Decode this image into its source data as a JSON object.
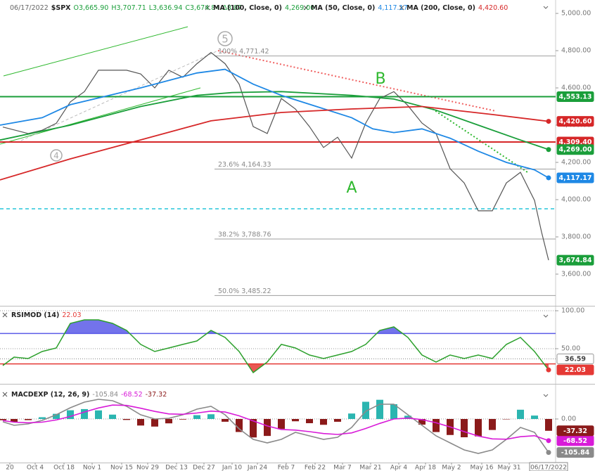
{
  "chart_data": [
    {
      "type": "line",
      "header": [
        "06/17/2022",
        "$SPX",
        "O3,665.90",
        "H3,707.71",
        "L3,636.94",
        "C3,674.84",
        "Δ8.07"
      ],
      "xlim": [
        0,
        39.5
      ],
      "xticks": [
        {
          "value": 0.7,
          "label": "20"
        },
        {
          "value": 2.5,
          "label": "Oct 4"
        },
        {
          "value": 4.55,
          "label": "Oct 18"
        },
        {
          "value": 6.55,
          "label": "Nov 1"
        },
        {
          "value": 8.65,
          "label": "Nov 15"
        },
        {
          "value": 10.5,
          "label": "Nov 29"
        },
        {
          "value": 12.55,
          "label": "Dec 13"
        },
        {
          "value": 14.5,
          "label": "Dec 27"
        },
        {
          "value": 16.5,
          "label": "Jan 10"
        },
        {
          "value": 18.3,
          "label": "Jan 24"
        },
        {
          "value": 20.35,
          "label": "Feb 7"
        },
        {
          "value": 22.4,
          "label": "Feb 22"
        },
        {
          "value": 24.35,
          "label": "Mar 7"
        },
        {
          "value": 26.35,
          "label": "Mar 21"
        },
        {
          "value": 28.35,
          "label": "Apr 4"
        },
        {
          "value": 30.25,
          "label": "Apr 18"
        },
        {
          "value": 32.1,
          "label": "May 2"
        },
        {
          "value": 34.25,
          "label": "May 16"
        },
        {
          "value": 36.2,
          "label": "May 31"
        },
        {
          "value": 39,
          "label": "06/17/2022"
        }
      ],
      "ylim": [
        3430,
        5072
      ],
      "yticks": [
        {
          "value": 5000,
          "label": "5,000.00"
        },
        {
          "value": 4800,
          "label": "4,800.00"
        },
        {
          "value": 4600,
          "label": "4,600.00"
        },
        {
          "value": 4400,
          "label": "4,400.00"
        },
        {
          "value": 4200,
          "label": "4,200.00"
        },
        {
          "value": 4000,
          "label": "4,000.00"
        },
        {
          "value": 3800,
          "label": "3,800.00"
        },
        {
          "value": 3600,
          "label": "3,600.00"
        }
      ],
      "series": [
        {
          "name": "$SPX",
          "color": "#555555",
          "tag_color": "#1a9e3a",
          "last_label": "3,674.84",
          "x": [
            0.2,
            2,
            3,
            4,
            5,
            6,
            7,
            8,
            9,
            10,
            11,
            12,
            13,
            14,
            15,
            16,
            17,
            18,
            19,
            20,
            21,
            22,
            23,
            24,
            25,
            26,
            27,
            28,
            29,
            30,
            31,
            32,
            33,
            34,
            35,
            36,
            37,
            38,
            38.5,
            39
          ],
          "values": [
            4390,
            4355,
            4373,
            4410,
            4525,
            4580,
            4695,
            4695,
            4695,
            4675,
            4600,
            4695,
            4657,
            4730,
            4790,
            4730,
            4620,
            4392,
            4355,
            4543,
            4487,
            4392,
            4280,
            4335,
            4223,
            4411,
            4543,
            4580,
            4505,
            4411,
            4355,
            4166,
            4090,
            3940,
            3940,
            4090,
            4147,
            3996,
            3826,
            3674.84
          ]
        },
        {
          "name": "MA (100, Close, 0)",
          "color": "#1a9e3a",
          "last_label": "4,269.00",
          "x": [
            0,
            5,
            10,
            14,
            16.5,
            20,
            25,
            28,
            31,
            34,
            37,
            39
          ],
          "values": [
            4320,
            4400,
            4500,
            4560,
            4575,
            4580,
            4560,
            4540,
            4480,
            4400,
            4320,
            4269
          ]
        },
        {
          "name": "MA (50, Close, 0)",
          "color": "#1e88e5",
          "last_label": "4,117.17",
          "x": [
            0,
            3,
            5,
            10,
            14,
            16,
            18,
            20,
            22.5,
            25,
            26.5,
            28,
            30,
            32,
            34,
            36,
            38,
            39
          ],
          "values": [
            4400,
            4440,
            4510,
            4600,
            4680,
            4700,
            4620,
            4560,
            4500,
            4440,
            4380,
            4360,
            4380,
            4330,
            4260,
            4200,
            4160,
            4117.17
          ]
        },
        {
          "name": "MA (200, Close, 0)",
          "color": "#d62728",
          "last_label": "4,420.60",
          "x": [
            0,
            5,
            10,
            15,
            20,
            25,
            30,
            35,
            39
          ],
          "values": [
            4106,
            4219,
            4321,
            4423,
            4468,
            4487,
            4500,
            4457,
            4420.6
          ]
        }
      ],
      "levels": [
        {
          "value": 4553.13,
          "label": "4,553.13",
          "color": "#1a9e3a"
        },
        {
          "value": 4309.4,
          "label": "4,309.40",
          "color": "#d62728"
        },
        {
          "value": 3951,
          "color": "#26c6da",
          "dashed": true
        }
      ],
      "fib_color": "#9e9e9e",
      "fib_levels": [
        {
          "value": 4771.42,
          "label": "100% 4,771.42"
        },
        {
          "value": 4164.33,
          "label": "23.6% 4,164.33"
        },
        {
          "value": 3788.76,
          "label": "38.2% 3,788.76"
        },
        {
          "value": 3485.22,
          "label": "50.0% 3,485.22"
        }
      ],
      "annotations": [
        "5",
        "4",
        "A",
        "B"
      ]
    },
    {
      "type": "line",
      "title": "RSIMOD (14)",
      "ylim": [
        4.6,
        106.5
      ],
      "yticks": [
        {
          "value": 100,
          "label": "100.00"
        },
        {
          "value": 50,
          "label": "50.00"
        }
      ],
      "overbought": 70,
      "overbought_color": "#5b5be8",
      "oversold": 30,
      "oversold_color": "#e53935",
      "marker": {
        "value": 36.59,
        "label": "36.59"
      },
      "x": [
        0.2,
        1,
        2,
        3,
        4,
        5,
        6,
        7,
        8,
        9,
        10,
        11,
        12,
        13,
        14,
        15,
        16,
        17,
        18,
        19,
        20,
        21,
        22,
        23,
        24,
        25,
        26,
        27,
        28,
        29,
        30,
        31,
        32,
        33,
        34,
        35,
        36,
        37,
        38,
        39
      ],
      "series": [
        {
          "color": "#2ca02c",
          "tag_color": "#e53935",
          "last_label": "22.03",
          "values": [
            27.8,
            38.9,
            37,
            46.3,
            50.9,
            83.3,
            88,
            88,
            83.3,
            74.1,
            55.6,
            46.3,
            50.9,
            55.6,
            60.2,
            74.1,
            64.8,
            46.3,
            18.5,
            32.4,
            55.6,
            50.9,
            41.7,
            37,
            41.7,
            46.3,
            55.6,
            74.1,
            78.7,
            64.8,
            41.7,
            32.4,
            41.7,
            37,
            41.7,
            37,
            55.6,
            64.8,
            46.3,
            22.03
          ]
        }
      ]
    },
    {
      "type": "macd",
      "title": "MACDEXP (12, 26, 9)",
      "ylim": [
        -137.8,
        106.7
      ],
      "yticks": [
        {
          "value": 0,
          "label": "0.00"
        }
      ],
      "x": [
        0.2,
        1,
        2,
        3,
        4,
        5,
        6,
        7,
        8,
        9,
        10,
        11,
        12,
        13,
        14,
        15,
        16,
        17,
        18,
        19,
        20,
        21,
        22,
        23,
        24,
        25,
        26,
        27,
        28,
        29,
        30,
        31,
        32,
        33,
        34,
        35,
        36,
        37,
        38,
        39
      ],
      "series": [
        {
          "kind": "line",
          "color": "#8a8a8a",
          "last_label": "-105.84",
          "values": [
            -8.9,
            -20,
            -15.6,
            -4.4,
            13.3,
            35.6,
            53.3,
            62.2,
            57.8,
            40,
            13.3,
            0,
            2.2,
            13.3,
            31.1,
            40,
            13.3,
            -31.1,
            -64.4,
            -75.6,
            -64.4,
            -42.2,
            -53.3,
            -64.4,
            -57.8,
            -26.7,
            24.4,
            46.7,
            46.7,
            13.3,
            -20,
            -53.3,
            -75.6,
            -97.8,
            -108.9,
            -97.8,
            -64.4,
            -26.7,
            -42.2,
            -105.84
          ]
        },
        {
          "kind": "line",
          "color": "#d81bd8",
          "last_label": "-68.52",
          "values": [
            -5,
            -10,
            -12,
            -10,
            -3,
            8,
            22,
            35,
            44,
            43,
            34,
            24,
            16,
            15,
            19,
            25,
            22,
            10,
            -6,
            -22,
            -33,
            -35,
            -40,
            -46,
            -49,
            -44,
            -30,
            -14,
            0,
            3,
            -2,
            -12,
            -25,
            -40,
            -54,
            -63,
            -64,
            -56,
            -53,
            -68.52
          ]
        },
        {
          "kind": "bar",
          "color": "#2bb5b0",
          "down_color": "#8b1a1a",
          "last_label": "-37.32",
          "values": [
            -3.9,
            -10,
            -3.6,
            5.6,
            16.3,
            27.6,
            31.3,
            27.2,
            13.8,
            -3,
            -20.7,
            -24,
            -13.8,
            -1.7,
            12.1,
            15,
            -8.7,
            -41.1,
            -58.4,
            -53.6,
            -31.4,
            -7.2,
            -13.3,
            -18.4,
            -8.8,
            17.3,
            54.4,
            60.7,
            46.7,
            10.3,
            -18,
            -41.3,
            -50.6,
            -57.8,
            -54.9,
            -34.8,
            -0.4,
            29.3,
            10.8,
            -37.32
          ]
        }
      ]
    }
  ]
}
